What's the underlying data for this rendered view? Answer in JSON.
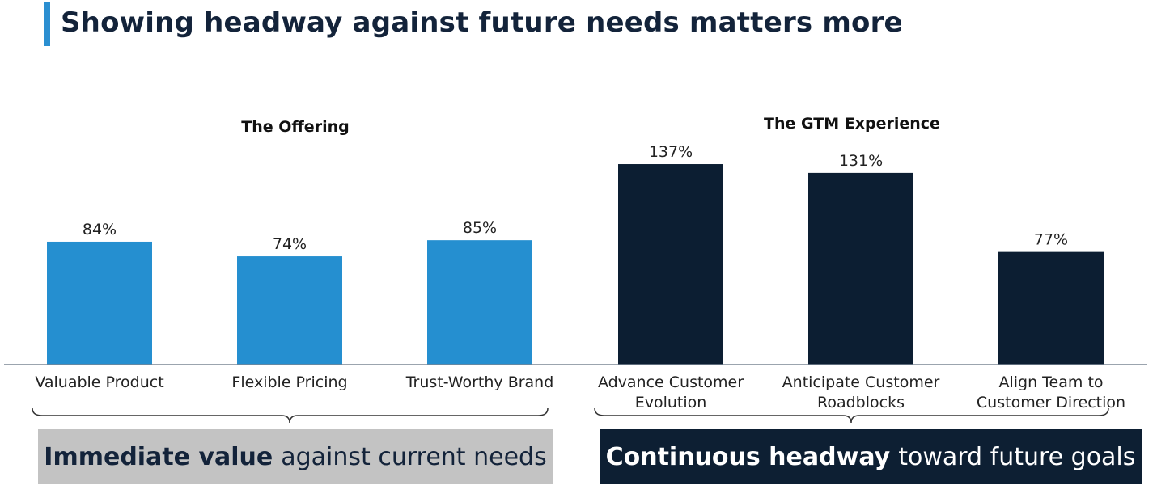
{
  "title": "Showing headway against future needs matters more",
  "colors": {
    "accent": "#2b8fd1",
    "offering_bar": "#258fd0",
    "gtm_bar": "#0c1e32",
    "baseline": "#7a8594",
    "panel_left_bg": "#c3c3c3",
    "panel_right_bg": "#0d1f33"
  },
  "chart_data": {
    "type": "bar",
    "value_suffix": "%",
    "groups": [
      {
        "title": "The Offering",
        "color": "#258fd0",
        "bars": [
          {
            "label": [
              "Valuable Product"
            ],
            "value": 84,
            "value_label": "84%"
          },
          {
            "label": [
              "Flexible Pricing"
            ],
            "value": 74,
            "value_label": "74%"
          },
          {
            "label": [
              "Trust-Worthy Brand"
            ],
            "value": 85,
            "value_label": "85%"
          }
        ]
      },
      {
        "title": "The GTM Experience",
        "color": "#0c1e32",
        "bars": [
          {
            "label": [
              "Advance Customer",
              "Evolution"
            ],
            "value": 137,
            "value_label": "137%"
          },
          {
            "label": [
              "Anticipate Customer",
              "Roadblocks"
            ],
            "value": 131,
            "value_label": "131%"
          },
          {
            "label": [
              "Align Team to",
              "Customer Direction"
            ],
            "value": 77,
            "value_label": "77%"
          }
        ]
      }
    ]
  },
  "panels": {
    "left": {
      "strong": "Immediate value",
      "rest": "against current needs"
    },
    "right": {
      "strong": "Continuous headway",
      "rest": "toward future goals"
    }
  }
}
